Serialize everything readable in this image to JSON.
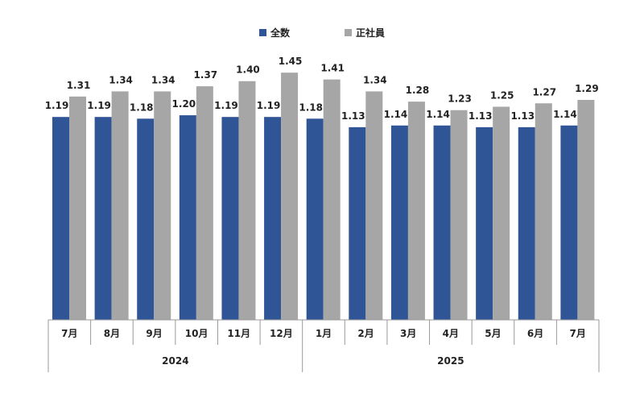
{
  "chart_data": {
    "type": "bar",
    "title": "",
    "xlabel": "",
    "ylabel": "",
    "ylim": [
      0,
      1.55
    ],
    "grid": false,
    "legend_position": "top-center",
    "categories": [
      "7月",
      "8月",
      "9月",
      "10月",
      "11月",
      "12月",
      "1月",
      "2月",
      "3月",
      "4月",
      "5月",
      "6月",
      "7月"
    ],
    "year_groups": [
      {
        "label": "2024",
        "count": 6
      },
      {
        "label": "2025",
        "count": 7
      }
    ],
    "series": [
      {
        "name": "全数",
        "color": "#2F5597",
        "values": [
          1.19,
          1.19,
          1.18,
          1.2,
          1.19,
          1.19,
          1.18,
          1.13,
          1.14,
          1.14,
          1.13,
          1.13,
          1.14
        ],
        "labels": [
          "1.19",
          "1.19",
          "1.18",
          "1.20",
          "1.19",
          "1.19",
          "1.18",
          "1.13",
          "1.14",
          "1.14",
          "1.13",
          "1.13",
          "1.14"
        ]
      },
      {
        "name": "正社員",
        "color": "#A6A6A6",
        "values": [
          1.31,
          1.34,
          1.34,
          1.37,
          1.4,
          1.45,
          1.41,
          1.34,
          1.28,
          1.23,
          1.25,
          1.27,
          1.29
        ],
        "labels": [
          "1.31",
          "1.34",
          "1.34",
          "1.37",
          "1.40",
          "1.45",
          "1.41",
          "1.34",
          "1.28",
          "1.23",
          "1.25",
          "1.27",
          "1.29"
        ]
      }
    ]
  }
}
